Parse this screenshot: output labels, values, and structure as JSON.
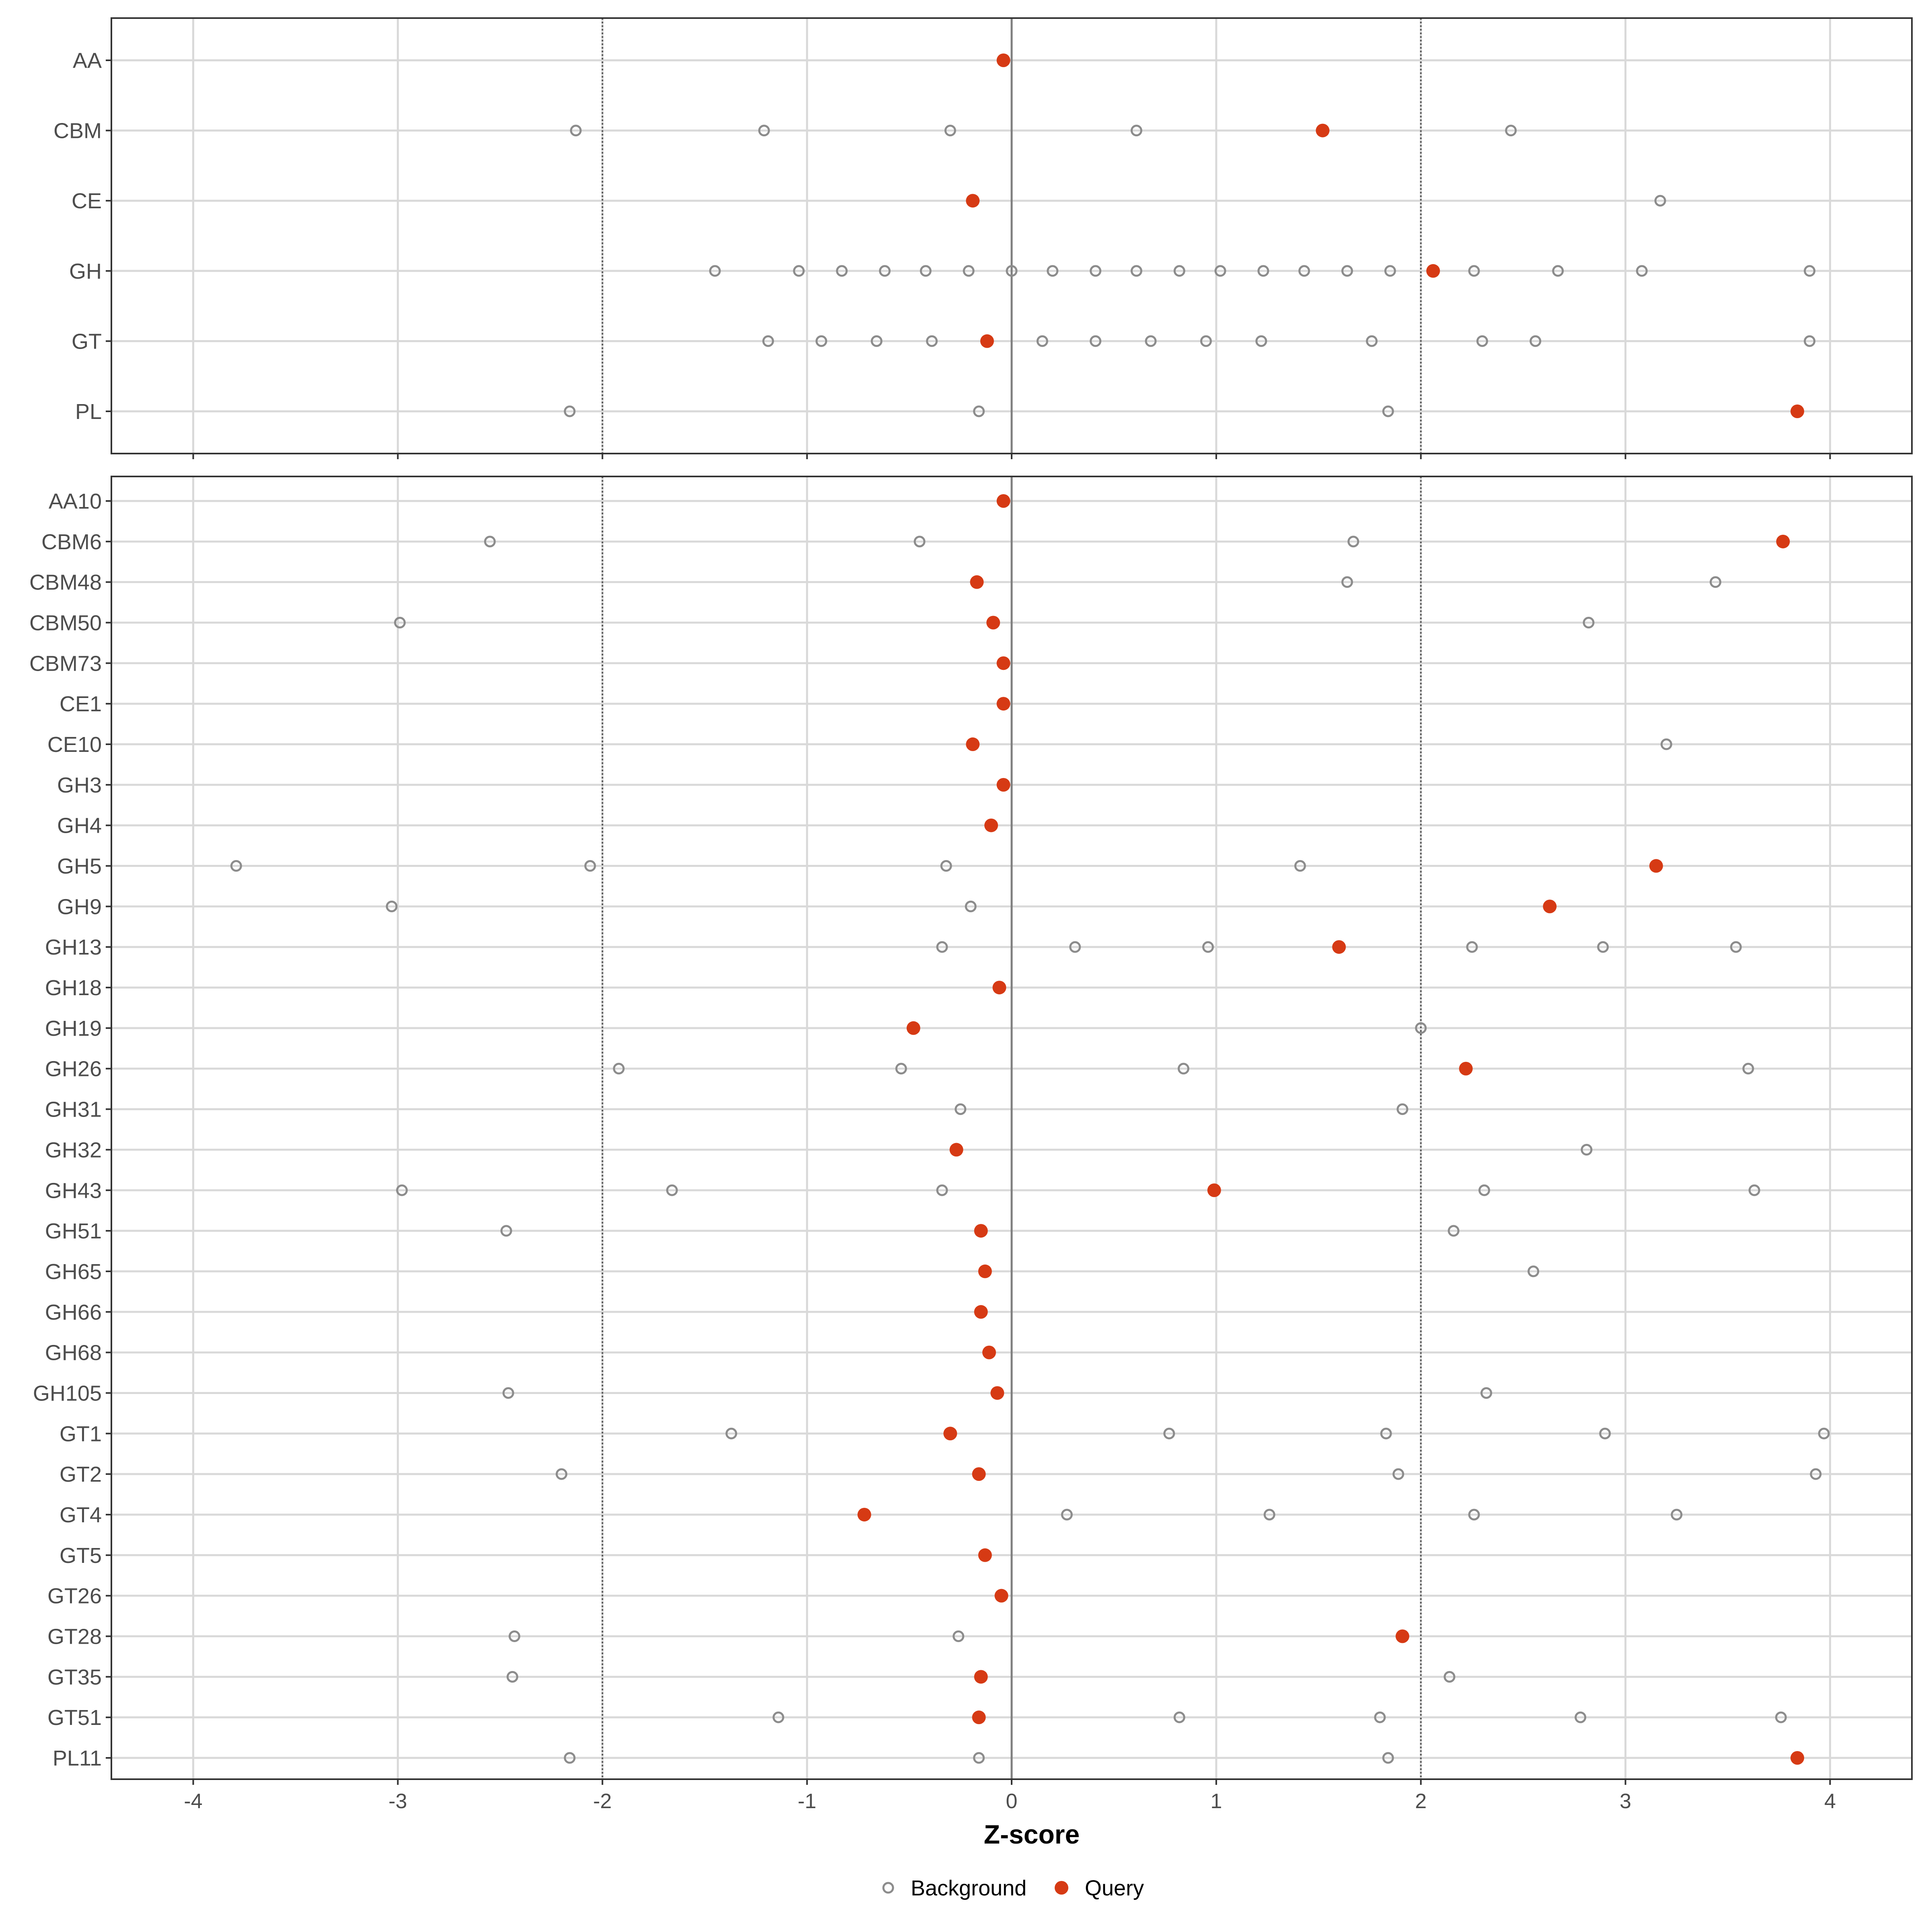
{
  "chart_data": {
    "type": "scatter",
    "xlabel": "Z-score",
    "xlim": [
      -4.4,
      4.4
    ],
    "x_ticks": [
      -4,
      -3,
      -2,
      -1,
      0,
      1,
      2,
      3,
      4
    ],
    "x_tick_labels": [
      "-4",
      "-3",
      "-2",
      "-1",
      "0",
      "1",
      "2",
      "3",
      "4"
    ],
    "reference_lines": {
      "solid": [
        0
      ],
      "dotted": [
        -2,
        2
      ]
    },
    "grid": true,
    "legend": {
      "position": "bottom",
      "entries": [
        {
          "label": "Background",
          "marker": "open-circle",
          "color": "#8c8c8c"
        },
        {
          "label": "Query",
          "marker": "filled-circle",
          "color": "#d63a14"
        }
      ]
    },
    "panels": [
      {
        "name": "families",
        "categories": [
          "AA",
          "CBM",
          "CE",
          "GH",
          "GT",
          "PL"
        ],
        "rows": [
          {
            "category": "AA",
            "background": [],
            "query": [
              -0.04
            ]
          },
          {
            "category": "CBM",
            "background": [
              -2.13,
              -1.21,
              -0.3,
              0.61,
              2.44
            ],
            "query": [
              1.52
            ]
          },
          {
            "category": "CE",
            "background": [
              3.17
            ],
            "query": [
              -0.19
            ]
          },
          {
            "category": "GH",
            "background": [
              -1.45,
              -1.04,
              -0.83,
              -0.62,
              -0.42,
              -0.21,
              0.0,
              0.2,
              0.41,
              0.61,
              0.82,
              1.02,
              1.23,
              1.43,
              1.64,
              1.85,
              2.26,
              2.67,
              3.08,
              3.9
            ],
            "query": [
              2.06
            ]
          },
          {
            "category": "GT",
            "background": [
              -1.19,
              -0.93,
              -0.66,
              -0.39,
              0.15,
              0.41,
              0.68,
              0.95,
              1.22,
              1.76,
              2.3,
              2.56,
              3.9
            ],
            "query": [
              -0.12
            ]
          },
          {
            "category": "PL",
            "background": [
              -2.16,
              -0.16,
              1.84
            ],
            "query": [
              3.84
            ]
          }
        ]
      },
      {
        "name": "subfamilies",
        "categories": [
          "AA10",
          "CBM6",
          "CBM48",
          "CBM50",
          "CBM73",
          "CE1",
          "CE10",
          "GH3",
          "GH4",
          "GH5",
          "GH9",
          "GH13",
          "GH18",
          "GH19",
          "GH26",
          "GH31",
          "GH32",
          "GH43",
          "GH51",
          "GH65",
          "GH66",
          "GH68",
          "GH105",
          "GT1",
          "GT2",
          "GT4",
          "GT5",
          "GT26",
          "GT28",
          "GT35",
          "GT51",
          "PL11"
        ],
        "rows": [
          {
            "category": "AA10",
            "background": [],
            "query": [
              -0.04
            ]
          },
          {
            "category": "CBM6",
            "background": [
              -2.55,
              -0.45,
              1.67
            ],
            "query": [
              3.77
            ]
          },
          {
            "category": "CBM48",
            "background": [
              1.64,
              3.44
            ],
            "query": [
              -0.17
            ]
          },
          {
            "category": "CBM50",
            "background": [
              -2.99,
              2.82
            ],
            "query": [
              -0.09
            ]
          },
          {
            "category": "CBM73",
            "background": [],
            "query": [
              -0.04
            ]
          },
          {
            "category": "CE1",
            "background": [],
            "query": [
              -0.04
            ]
          },
          {
            "category": "CE10",
            "background": [
              3.2
            ],
            "query": [
              -0.19
            ]
          },
          {
            "category": "GH3",
            "background": [],
            "query": [
              -0.04
            ]
          },
          {
            "category": "GH4",
            "background": [],
            "query": [
              -0.1
            ]
          },
          {
            "category": "GH5",
            "background": [
              -3.79,
              -2.06,
              -0.32,
              1.41
            ],
            "query": [
              3.15
            ]
          },
          {
            "category": "GH9",
            "background": [
              -3.03,
              -0.2
            ],
            "query": [
              2.63
            ]
          },
          {
            "category": "GH13",
            "background": [
              -0.34,
              0.31,
              0.96,
              2.25,
              2.89,
              3.54
            ],
            "query": [
              1.6
            ]
          },
          {
            "category": "GH18",
            "background": [],
            "query": [
              -0.06
            ]
          },
          {
            "category": "GH19",
            "background": [
              2.0
            ],
            "query": [
              -0.48
            ]
          },
          {
            "category": "GH26",
            "background": [
              -1.92,
              -0.54,
              0.84,
              3.6
            ],
            "query": [
              2.22
            ]
          },
          {
            "category": "GH31",
            "background": [
              -0.25,
              1.91
            ],
            "query": []
          },
          {
            "category": "GH32",
            "background": [
              2.81
            ],
            "query": [
              -0.27
            ]
          },
          {
            "category": "GH43",
            "background": [
              -2.98,
              -1.66,
              -0.34,
              2.31,
              3.63
            ],
            "query": [
              0.99
            ]
          },
          {
            "category": "GH51",
            "background": [
              -2.47,
              2.16
            ],
            "query": [
              -0.15
            ]
          },
          {
            "category": "GH65",
            "background": [
              2.55
            ],
            "query": [
              -0.13
            ]
          },
          {
            "category": "GH66",
            "background": [],
            "query": [
              -0.15
            ]
          },
          {
            "category": "GH68",
            "background": [],
            "query": [
              -0.11
            ]
          },
          {
            "category": "GH105",
            "background": [
              -2.46,
              2.32
            ],
            "query": [
              -0.07
            ]
          },
          {
            "category": "GT1",
            "background": [
              -1.37,
              0.77,
              1.83,
              2.9,
              3.97
            ],
            "query": [
              -0.3
            ]
          },
          {
            "category": "GT2",
            "background": [
              -2.2,
              1.89,
              3.93
            ],
            "query": [
              -0.16
            ]
          },
          {
            "category": "GT4",
            "background": [
              0.27,
              1.26,
              2.26,
              3.25
            ],
            "query": [
              -0.72
            ]
          },
          {
            "category": "GT5",
            "background": [],
            "query": [
              -0.13
            ]
          },
          {
            "category": "GT26",
            "background": [],
            "query": [
              -0.05
            ]
          },
          {
            "category": "GT28",
            "background": [
              -2.43,
              -0.26
            ],
            "query": [
              1.91
            ]
          },
          {
            "category": "GT35",
            "background": [
              -2.44,
              2.14
            ],
            "query": [
              -0.15
            ]
          },
          {
            "category": "GT51",
            "background": [
              -1.14,
              0.82,
              1.8,
              2.78,
              3.76
            ],
            "query": [
              -0.16
            ]
          },
          {
            "category": "PL11",
            "background": [
              -2.16,
              -0.16,
              1.84
            ],
            "query": [
              3.84
            ]
          }
        ]
      }
    ]
  }
}
